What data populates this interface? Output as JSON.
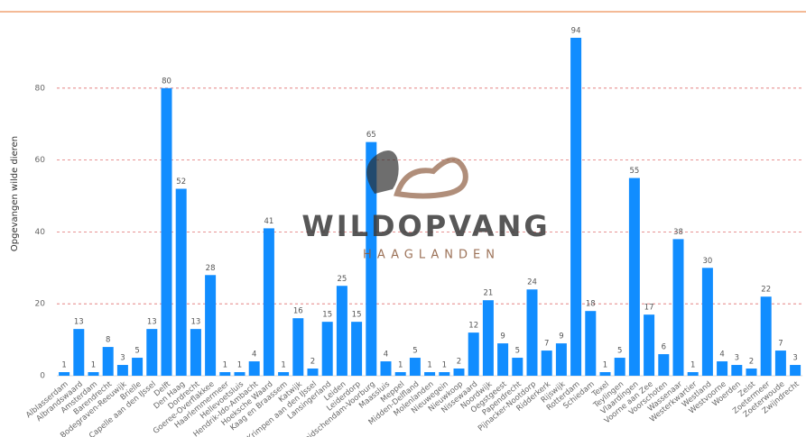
{
  "chart_data": {
    "type": "bar",
    "y_label": "Opgevangen wilde dieren",
    "categories": [
      "Alblasserdam",
      "Albrandswaard",
      "Amsterdam",
      "Barendrecht",
      "Bodegraven-Reeuwijk",
      "Brielle",
      "Capelle aan den IJssel",
      "Delft",
      "Den Haag",
      "Dordrecht",
      "Goeree-Overflakkee",
      "Haarlemmermeer",
      "Hellevoetsluis",
      "Hendrik-Ido-Ambacht",
      "Hoeksche Waard",
      "Kaag en Braassem",
      "Katwijk",
      "Krimpen aan den IJssel",
      "Lansingerland",
      "Leiden",
      "Leiderdorp",
      "Leidschendam-Voorburg",
      "Maassluis",
      "Meppel",
      "Midden-Delfland",
      "Molenlanden",
      "Nieuwegein",
      "Nieuwkoop",
      "Nissewaard",
      "Noordwijk",
      "Oegstgeest",
      "Papendrecht",
      "Pijnacker-Nootdorp",
      "Ridderkerk",
      "Rijswijk",
      "Rotterdam",
      "Schiedam",
      "Texel",
      "Teylingen",
      "Vlaardingen",
      "Voorne aan Zee",
      "Voorschoten",
      "Wassenaar",
      "Westerkwartier",
      "Westland",
      "Westvoorne",
      "Woerden",
      "Zeist",
      "Zoetermeer",
      "Zoeterwoude",
      "Zwijndrecht"
    ],
    "values": [
      1,
      13,
      1,
      8,
      3,
      5,
      13,
      80,
      52,
      13,
      28,
      1,
      1,
      4,
      41,
      1,
      16,
      2,
      15,
      25,
      15,
      65,
      4,
      1,
      5,
      1,
      1,
      2,
      12,
      21,
      9,
      5,
      24,
      7,
      9,
      94,
      18,
      1,
      5,
      55,
      17,
      6,
      38,
      1,
      30,
      4,
      3,
      2,
      22,
      7,
      3
    ],
    "color": "#118dff",
    "ylim": [
      0,
      100
    ],
    "yticks": [
      0,
      20,
      40,
      60,
      80
    ],
    "grid": true
  },
  "watermark": {
    "title": "WILDOPVANG",
    "subtitle": "HAAGLANDEN"
  }
}
